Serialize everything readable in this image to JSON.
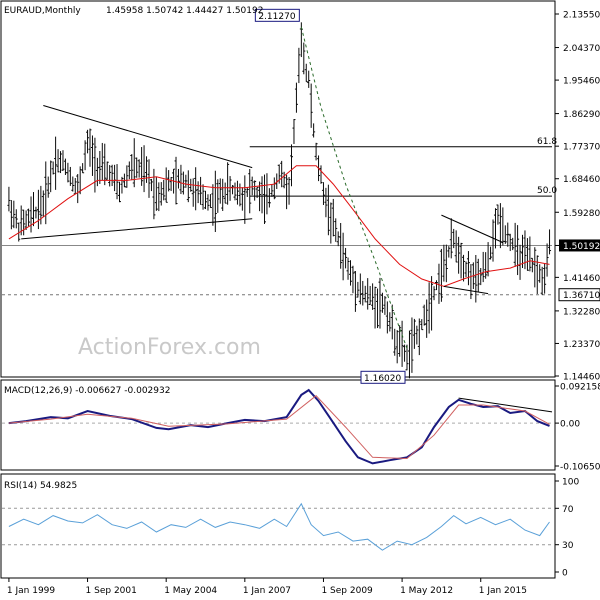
{
  "header": {
    "symbol": "EURAUD,Monthly",
    "ohlc": "1.45958 1.50742 1.44427 1.50192"
  },
  "watermark": "ActionForex.com",
  "colors": {
    "bars": "#0a0a0a",
    "ma": "#e01010",
    "macd": "#1a1a80",
    "signal": "#d06060",
    "rsi": "#5aa0d8",
    "tag_border": "#1a1a80",
    "grid_dash": "#777777"
  },
  "chart_data": [
    {
      "type": "ohlc",
      "panel": "price",
      "title": "EURAUD,Monthly",
      "x_ticks": [
        "1 Jan 1999",
        "1 Sep 2001",
        "1 May 2004",
        "1 Jan 2007",
        "1 Sep 2009",
        "1 May 2012",
        "1 Jan 2015"
      ],
      "x_tick_dates": [
        "1999-01",
        "2001-09",
        "2004-05",
        "2007-01",
        "2009-09",
        "2012-05",
        "2015-01"
      ],
      "x_range": [
        "1998-11",
        "2017-06"
      ],
      "y_ticks": [
        "2.13550",
        "2.04370",
        "1.95460",
        "1.86290",
        "1.77370",
        "1.68460",
        "1.59280",
        "1.50192",
        "1.41460",
        "1.32280",
        "1.23370",
        "1.14460"
      ],
      "ylim": [
        1.1446,
        2.1355
      ],
      "current_price": "1.50192",
      "current_value": 1.50192,
      "series_approx": [
        {
          "date": "1999-01",
          "value": 1.62
        },
        {
          "date": "1999-05",
          "value": 1.55
        },
        {
          "date": "1999-10",
          "value": 1.58
        },
        {
          "date": "2000-03",
          "value": 1.62
        },
        {
          "date": "2000-08",
          "value": 1.74
        },
        {
          "date": "2000-12",
          "value": 1.72
        },
        {
          "date": "2001-05",
          "value": 1.65
        },
        {
          "date": "2001-09",
          "value": 1.78
        },
        {
          "date": "2002-01",
          "value": 1.72
        },
        {
          "date": "2002-06",
          "value": 1.7
        },
        {
          "date": "2002-10",
          "value": 1.65
        },
        {
          "date": "2003-03",
          "value": 1.72
        },
        {
          "date": "2003-09",
          "value": 1.7
        },
        {
          "date": "2004-01",
          "value": 1.64
        },
        {
          "date": "2004-06",
          "value": 1.67
        },
        {
          "date": "2005-01",
          "value": 1.68
        },
        {
          "date": "2005-06",
          "value": 1.64
        },
        {
          "date": "2005-12",
          "value": 1.62
        },
        {
          "date": "2006-06",
          "value": 1.66
        },
        {
          "date": "2006-12",
          "value": 1.64
        },
        {
          "date": "2007-04",
          "value": 1.66
        },
        {
          "date": "2007-10",
          "value": 1.62
        },
        {
          "date": "2008-03",
          "value": 1.7
        },
        {
          "date": "2008-07",
          "value": 1.65
        },
        {
          "date": "2008-10",
          "value": 1.9
        },
        {
          "date": "2008-12",
          "value": 2.05
        },
        {
          "date": "2009-03",
          "value": 1.95
        },
        {
          "date": "2009-06",
          "value": 1.75
        },
        {
          "date": "2009-10",
          "value": 1.62
        },
        {
          "date": "2010-03",
          "value": 1.52
        },
        {
          "date": "2010-08",
          "value": 1.42
        },
        {
          "date": "2011-01",
          "value": 1.37
        },
        {
          "date": "2011-06",
          "value": 1.35
        },
        {
          "date": "2011-10",
          "value": 1.34
        },
        {
          "date": "2012-02",
          "value": 1.25
        },
        {
          "date": "2012-07",
          "value": 1.2
        },
        {
          "date": "2012-10",
          "value": 1.24
        },
        {
          "date": "2013-02",
          "value": 1.3
        },
        {
          "date": "2013-06",
          "value": 1.38
        },
        {
          "date": "2013-10",
          "value": 1.44
        },
        {
          "date": "2014-02",
          "value": 1.52
        },
        {
          "date": "2014-07",
          "value": 1.44
        },
        {
          "date": "2014-11",
          "value": 1.4
        },
        {
          "date": "2015-04",
          "value": 1.45
        },
        {
          "date": "2015-08",
          "value": 1.58
        },
        {
          "date": "2015-12",
          "value": 1.53
        },
        {
          "date": "2016-04",
          "value": 1.48
        },
        {
          "date": "2016-09",
          "value": 1.46
        },
        {
          "date": "2016-12",
          "value": 1.43
        },
        {
          "date": "2017-03",
          "value": 1.4
        },
        {
          "date": "2017-05",
          "value": 1.5
        }
      ],
      "moving_average_approx": [
        {
          "date": "1999-01",
          "value": 1.52
        },
        {
          "date": "2000-01",
          "value": 1.57
        },
        {
          "date": "2001-01",
          "value": 1.63
        },
        {
          "date": "2002-01",
          "value": 1.68
        },
        {
          "date": "2003-01",
          "value": 1.68
        },
        {
          "date": "2004-01",
          "value": 1.69
        },
        {
          "date": "2005-01",
          "value": 1.67
        },
        {
          "date": "2006-01",
          "value": 1.66
        },
        {
          "date": "2007-01",
          "value": 1.66
        },
        {
          "date": "2008-01",
          "value": 1.67
        },
        {
          "date": "2008-10",
          "value": 1.72
        },
        {
          "date": "2009-06",
          "value": 1.72
        },
        {
          "date": "2010-01",
          "value": 1.67
        },
        {
          "date": "2010-09",
          "value": 1.6
        },
        {
          "date": "2011-06",
          "value": 1.52
        },
        {
          "date": "2012-04",
          "value": 1.45
        },
        {
          "date": "2013-01",
          "value": 1.41
        },
        {
          "date": "2013-10",
          "value": 1.39
        },
        {
          "date": "2014-06",
          "value": 1.41
        },
        {
          "date": "2015-03",
          "value": 1.43
        },
        {
          "date": "2016-01",
          "value": 1.44
        },
        {
          "date": "2016-09",
          "value": 1.46
        },
        {
          "date": "2017-05",
          "value": 1.45
        }
      ],
      "fib_levels": [
        {
          "label": "61.8",
          "value": 1.772
        },
        {
          "label": "50.0",
          "value": 1.637
        }
      ],
      "support_level": {
        "label": "1.36710",
        "value": 1.3671
      },
      "annotations": [
        {
          "label": "2.11270",
          "date": "2008-12",
          "value": 2.1127
        },
        {
          "label": "1.16020",
          "date": "2012-07",
          "value": 1.1602
        }
      ],
      "trendlines": [
        {
          "from": {
            "date": "2000-03",
            "value": 1.885
          },
          "to": {
            "date": "2007-04",
            "value": 1.715
          }
        },
        {
          "from": {
            "date": "1999-06",
            "value": 1.52
          },
          "to": {
            "date": "2007-04",
            "value": 1.575
          }
        },
        {
          "from": {
            "date": "2013-09",
            "value": 1.585
          },
          "to": {
            "date": "2015-10",
            "value": 1.51
          }
        },
        {
          "from": {
            "date": "2013-10",
            "value": 1.39
          },
          "to": {
            "date": "2015-04",
            "value": 1.37
          }
        }
      ],
      "dashed_curve": [
        {
          "date": "2008-12",
          "value": 2.1
        },
        {
          "date": "2009-08",
          "value": 1.88
        },
        {
          "date": "2010-06",
          "value": 1.67
        },
        {
          "date": "2011-06",
          "value": 1.46
        },
        {
          "date": "2012-07",
          "value": 1.22
        }
      ]
    },
    {
      "type": "line",
      "panel": "macd",
      "title": "MACD(12,26,9) -0.006627 -0.002932",
      "y_ticks": [
        "0.092158",
        "0.00",
        "-0.106503"
      ],
      "ylim": [
        -0.106503,
        0.092158
      ],
      "series": [
        {
          "name": "MACD",
          "values": [
            {
              "date": "1999-01",
              "value": 0.0
            },
            {
              "date": "1999-08",
              "value": 0.005
            },
            {
              "date": "2000-06",
              "value": 0.015
            },
            {
              "date": "2001-01",
              "value": 0.012
            },
            {
              "date": "2001-09",
              "value": 0.03
            },
            {
              "date": "2002-06",
              "value": 0.018
            },
            {
              "date": "2003-03",
              "value": 0.01
            },
            {
              "date": "2004-01",
              "value": -0.012
            },
            {
              "date": "2004-06",
              "value": -0.015
            },
            {
              "date": "2005-03",
              "value": -0.005
            },
            {
              "date": "2005-10",
              "value": -0.01
            },
            {
              "date": "2006-06",
              "value": 0.0
            },
            {
              "date": "2007-01",
              "value": 0.008
            },
            {
              "date": "2007-09",
              "value": 0.005
            },
            {
              "date": "2008-06",
              "value": 0.015
            },
            {
              "date": "2008-12",
              "value": 0.07
            },
            {
              "date": "2009-03",
              "value": 0.082
            },
            {
              "date": "2009-07",
              "value": 0.055
            },
            {
              "date": "2009-12",
              "value": 0.01
            },
            {
              "date": "2010-06",
              "value": -0.045
            },
            {
              "date": "2010-11",
              "value": -0.085
            },
            {
              "date": "2011-05",
              "value": -0.1
            },
            {
              "date": "2011-12",
              "value": -0.092
            },
            {
              "date": "2012-07",
              "value": -0.085
            },
            {
              "date": "2013-01",
              "value": -0.06
            },
            {
              "date": "2013-06",
              "value": -0.01
            },
            {
              "date": "2013-12",
              "value": 0.04
            },
            {
              "date": "2014-04",
              "value": 0.058
            },
            {
              "date": "2014-09",
              "value": 0.048
            },
            {
              "date": "2015-02",
              "value": 0.04
            },
            {
              "date": "2015-08",
              "value": 0.042
            },
            {
              "date": "2016-01",
              "value": 0.025
            },
            {
              "date": "2016-07",
              "value": 0.03
            },
            {
              "date": "2016-12",
              "value": 0.005
            },
            {
              "date": "2017-05",
              "value": -0.007
            }
          ]
        },
        {
          "name": "Signal",
          "values": [
            {
              "date": "1999-01",
              "value": 0.0
            },
            {
              "date": "2000-06",
              "value": 0.01
            },
            {
              "date": "2001-09",
              "value": 0.022
            },
            {
              "date": "2003-03",
              "value": 0.012
            },
            {
              "date": "2004-06",
              "value": -0.008
            },
            {
              "date": "2006-06",
              "value": -0.002
            },
            {
              "date": "2008-06",
              "value": 0.01
            },
            {
              "date": "2009-06",
              "value": 0.068
            },
            {
              "date": "2010-06",
              "value": -0.01
            },
            {
              "date": "2011-05",
              "value": -0.085
            },
            {
              "date": "2012-07",
              "value": -0.088
            },
            {
              "date": "2013-06",
              "value": -0.03
            },
            {
              "date": "2014-04",
              "value": 0.045
            },
            {
              "date": "2015-02",
              "value": 0.045
            },
            {
              "date": "2016-07",
              "value": 0.03
            },
            {
              "date": "2017-05",
              "value": -0.003
            }
          ]
        }
      ],
      "trendline": {
        "from": {
          "date": "2014-04",
          "value": 0.062
        },
        "to": {
          "date": "2017-06",
          "value": 0.028
        }
      }
    },
    {
      "type": "line",
      "panel": "rsi",
      "title": "RSI(14) 54.9825",
      "y_ticks": [
        "100",
        "70",
        "30",
        "0"
      ],
      "ylim": [
        0,
        100
      ],
      "levels": [
        70,
        30
      ],
      "series": [
        {
          "name": "RSI",
          "values": [
            {
              "date": "1999-01",
              "value": 50
            },
            {
              "date": "1999-07",
              "value": 58
            },
            {
              "date": "2000-01",
              "value": 52
            },
            {
              "date": "2000-07",
              "value": 62
            },
            {
              "date": "2001-01",
              "value": 56
            },
            {
              "date": "2001-07",
              "value": 54
            },
            {
              "date": "2002-01",
              "value": 63
            },
            {
              "date": "2002-07",
              "value": 52
            },
            {
              "date": "2003-01",
              "value": 48
            },
            {
              "date": "2003-07",
              "value": 55
            },
            {
              "date": "2004-01",
              "value": 44
            },
            {
              "date": "2004-07",
              "value": 52
            },
            {
              "date": "2005-01",
              "value": 49
            },
            {
              "date": "2005-07",
              "value": 58
            },
            {
              "date": "2006-01",
              "value": 49
            },
            {
              "date": "2006-07",
              "value": 55
            },
            {
              "date": "2007-01",
              "value": 52
            },
            {
              "date": "2007-07",
              "value": 48
            },
            {
              "date": "2008-01",
              "value": 58
            },
            {
              "date": "2008-06",
              "value": 50
            },
            {
              "date": "2008-12",
              "value": 75
            },
            {
              "date": "2009-04",
              "value": 52
            },
            {
              "date": "2009-09",
              "value": 40
            },
            {
              "date": "2010-03",
              "value": 44
            },
            {
              "date": "2010-09",
              "value": 34
            },
            {
              "date": "2011-03",
              "value": 36
            },
            {
              "date": "2011-09",
              "value": 24
            },
            {
              "date": "2012-03",
              "value": 34
            },
            {
              "date": "2012-09",
              "value": 30
            },
            {
              "date": "2013-03",
              "value": 38
            },
            {
              "date": "2013-09",
              "value": 50
            },
            {
              "date": "2014-02",
              "value": 62
            },
            {
              "date": "2014-07",
              "value": 53
            },
            {
              "date": "2015-01",
              "value": 60
            },
            {
              "date": "2015-07",
              "value": 52
            },
            {
              "date": "2016-01",
              "value": 58
            },
            {
              "date": "2016-07",
              "value": 46
            },
            {
              "date": "2017-01",
              "value": 40
            },
            {
              "date": "2017-05",
              "value": 55
            }
          ]
        }
      ]
    }
  ]
}
